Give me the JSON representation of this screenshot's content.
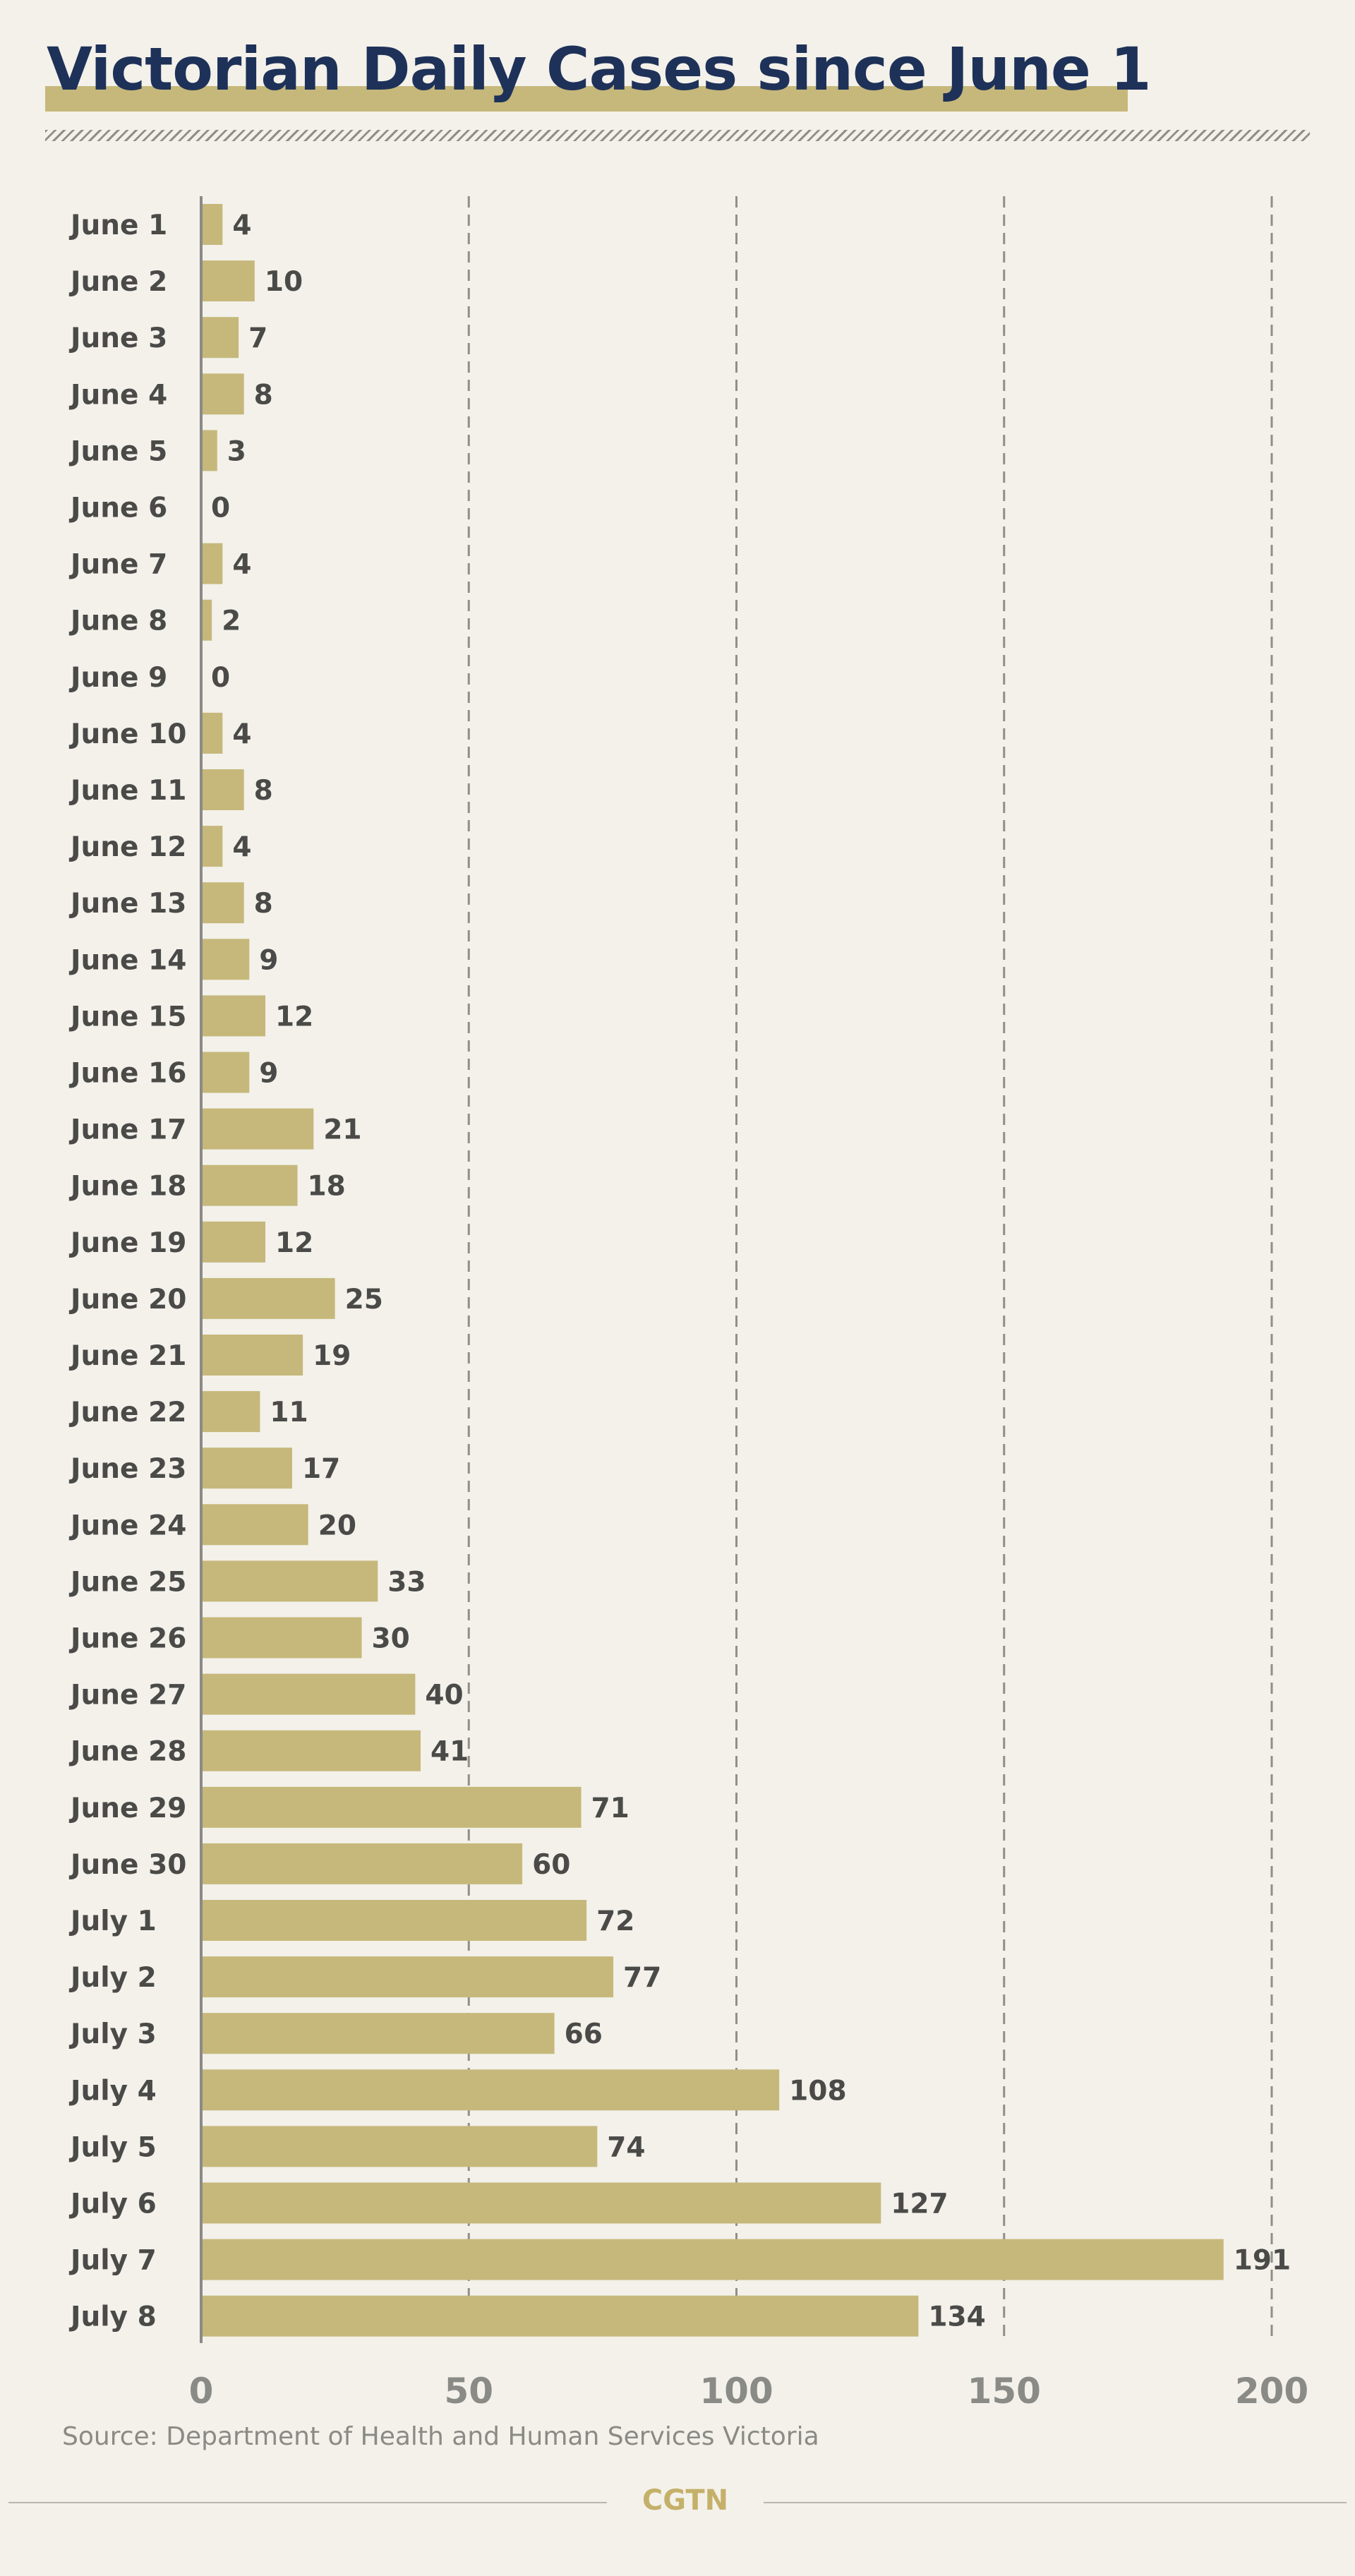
{
  "chart_data": {
    "type": "bar",
    "orientation": "horizontal",
    "title": "Victorian Daily Cases since June 1",
    "categories": [
      "June 1",
      "June 2",
      "June 3",
      "June 4",
      "June 5",
      "June 6",
      "June 7",
      "June 8",
      "June 9",
      "June 10",
      "June 11",
      "June 12",
      "June 13",
      "June 14",
      "June 15",
      "June 16",
      "June 17",
      "June 18",
      "June 19",
      "June 20",
      "June 21",
      "June 22",
      "June 23",
      "June 24",
      "June 25",
      "June 26",
      "June 27",
      "June 28",
      "June 29",
      "June 30",
      "July 1",
      "July 2",
      "July 3",
      "July 4",
      "July 5",
      "July 6",
      "July 7",
      "July 8"
    ],
    "values": [
      4,
      10,
      7,
      8,
      3,
      0,
      4,
      2,
      0,
      4,
      8,
      4,
      8,
      9,
      12,
      9,
      21,
      18,
      12,
      25,
      19,
      11,
      17,
      20,
      33,
      30,
      40,
      41,
      71,
      60,
      72,
      77,
      66,
      108,
      74,
      127,
      191,
      134
    ],
    "xlim": [
      0,
      200
    ],
    "xticks": [
      0,
      50,
      100,
      150,
      200
    ],
    "grid": true,
    "grid_style": "dashed vertical",
    "bar_color": "#c6b87b",
    "show_value_labels": true
  },
  "source": "Source: Department of Health and Human Services Victoria",
  "brand": "CGTN",
  "colors": {
    "background": "#f3f1ea",
    "title": "#1e3158",
    "bar": "#c6b87b",
    "label_text": "#4a4a48",
    "grid": "#8f8f8a",
    "brand": "#c5b06a"
  }
}
